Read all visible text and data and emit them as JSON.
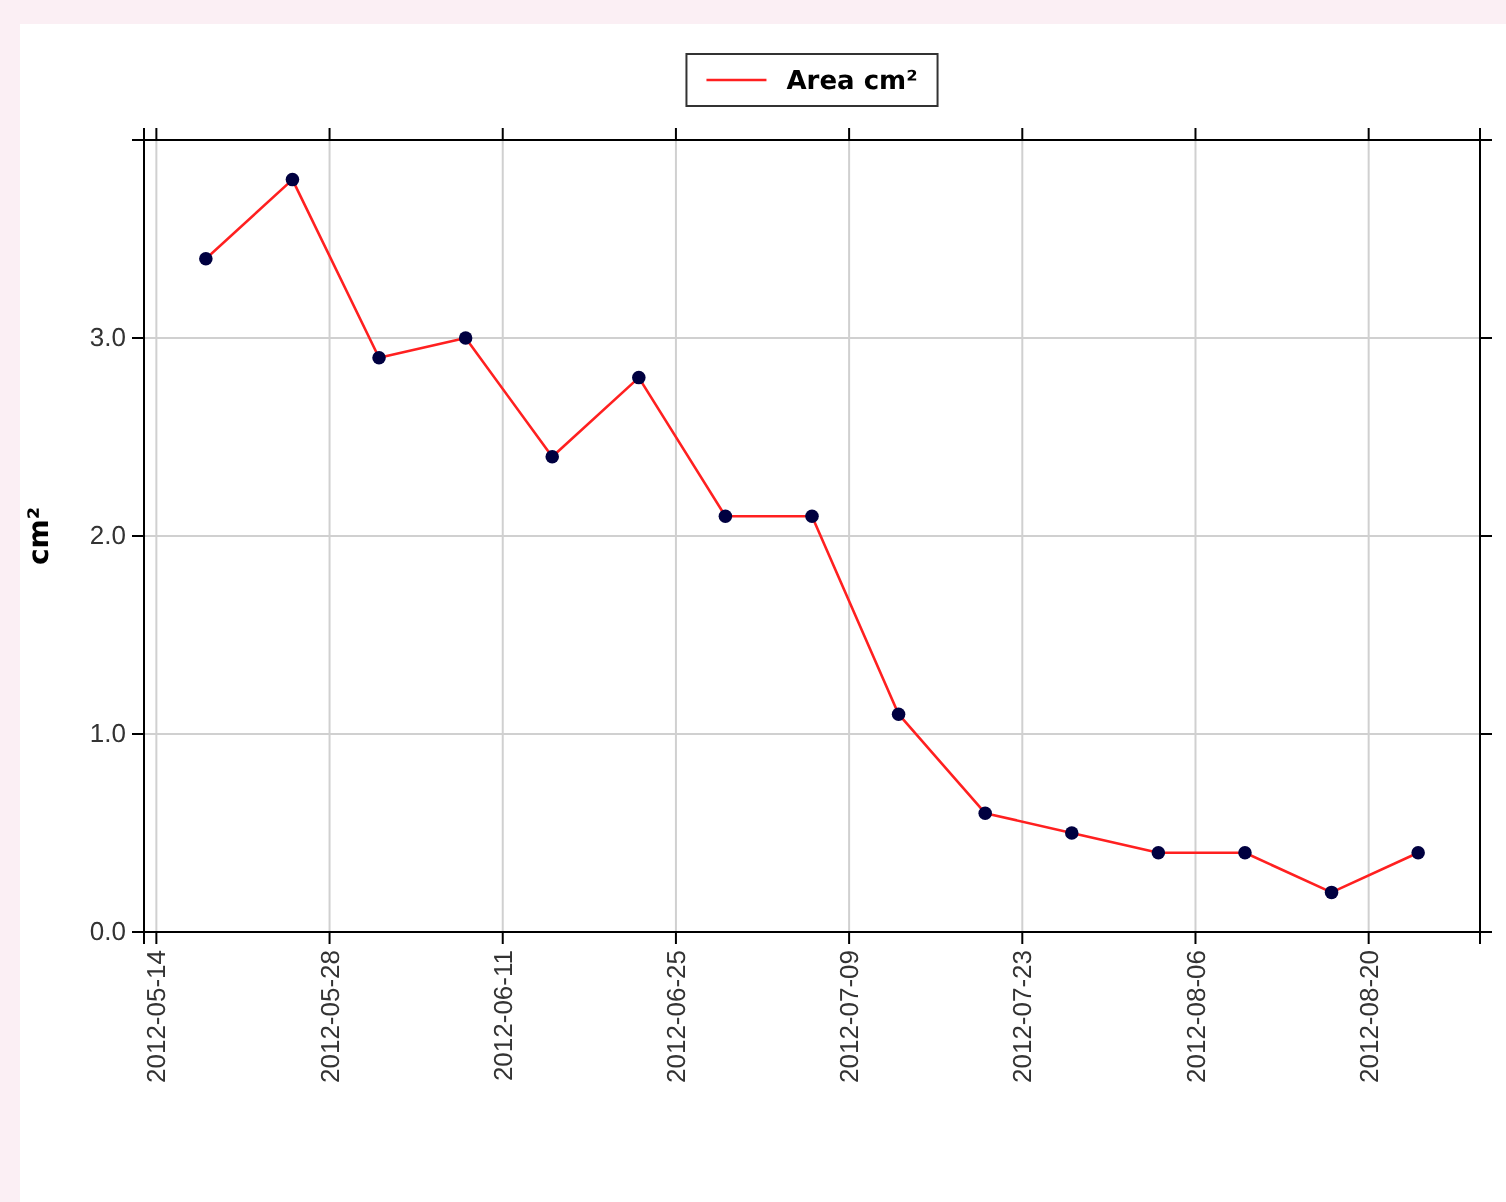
{
  "chart_data": {
    "type": "line",
    "ylabel": "cm²",
    "x": [
      "2012-05-18",
      "2012-05-25",
      "2012-06-01",
      "2012-06-08",
      "2012-06-15",
      "2012-06-22",
      "2012-06-29",
      "2012-07-06",
      "2012-07-13",
      "2012-07-20",
      "2012-07-27",
      "2012-08-03",
      "2012-08-10",
      "2012-08-17",
      "2012-08-24"
    ],
    "series": [
      {
        "name": "Area cm²",
        "color": "#ff2020",
        "values": [
          3.4,
          3.8,
          2.9,
          3.0,
          2.4,
          2.8,
          2.1,
          2.1,
          1.1,
          0.6,
          0.5,
          0.4,
          0.4,
          0.2,
          0.4
        ]
      }
    ],
    "xlim": [
      "2012-05-13",
      "2012-08-29"
    ],
    "xticks": [
      "2012-05-14",
      "2012-05-28",
      "2012-06-11",
      "2012-06-25",
      "2012-07-09",
      "2012-07-23",
      "2012-08-06",
      "2012-08-20"
    ],
    "ylim": [
      0,
      4
    ],
    "yticks": [
      {
        "value": 0,
        "label": "0.0"
      },
      {
        "value": 1,
        "label": "1.0"
      },
      {
        "value": 2,
        "label": "2.0"
      },
      {
        "value": 3,
        "label": "3.0"
      }
    ],
    "grid": true,
    "legend": "top",
    "marker": "circle",
    "line_style": "solid"
  }
}
